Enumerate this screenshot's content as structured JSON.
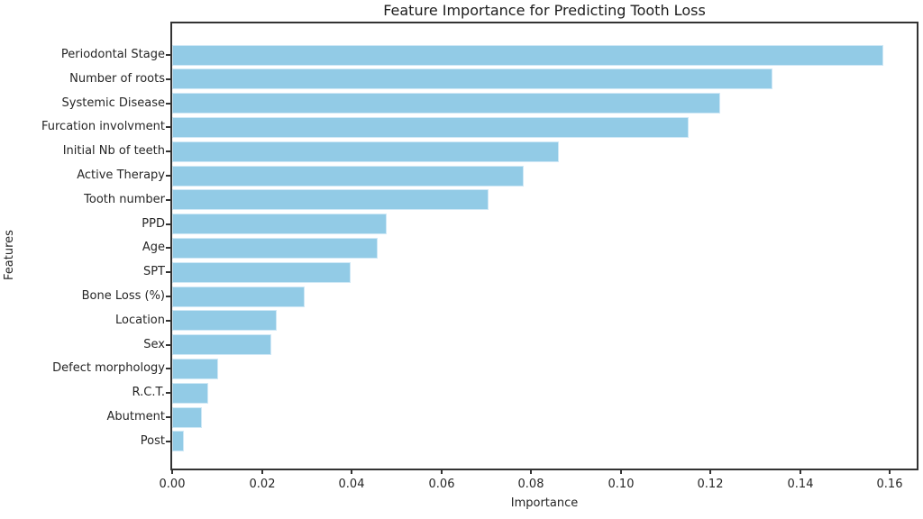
{
  "chart_data": {
    "type": "bar",
    "orientation": "horizontal",
    "title": "Feature Importance for Predicting Tooth Loss",
    "xlabel": "Importance",
    "ylabel": "Features",
    "categories": [
      "Periodontal Stage",
      "Number of roots",
      "Systemic Disease",
      "Furcation involvment",
      "Initial Nb of teeth",
      "Active Therapy",
      "Tooth number",
      "PPD",
      "Age",
      "SPT",
      "Bone Loss (%)",
      "Location",
      "Sex",
      "Defect morphology",
      "R.C.T.",
      "Abutment",
      "Post"
    ],
    "values": [
      0.1585,
      0.1338,
      0.1222,
      0.1151,
      0.0862,
      0.0784,
      0.0706,
      0.0479,
      0.0458,
      0.0398,
      0.0295,
      0.0233,
      0.0222,
      0.0103,
      0.008,
      0.0067,
      0.0026
    ],
    "xlim": [
      0,
      0.166
    ],
    "xticks": [
      0,
      0.02,
      0.04,
      0.06,
      0.08,
      0.1,
      0.12,
      0.14,
      0.16
    ],
    "xtick_labels": [
      "0.00",
      "0.02",
      "0.04",
      "0.06",
      "0.08",
      "0.10",
      "0.12",
      "0.14",
      "0.16"
    ],
    "grid": false,
    "legend": null,
    "colors": {
      "bar_fill": "#92cbe6",
      "bar_edge": "#cfe8f6",
      "spine": "#333333",
      "text": "#262626",
      "background": "#ffffff"
    }
  }
}
